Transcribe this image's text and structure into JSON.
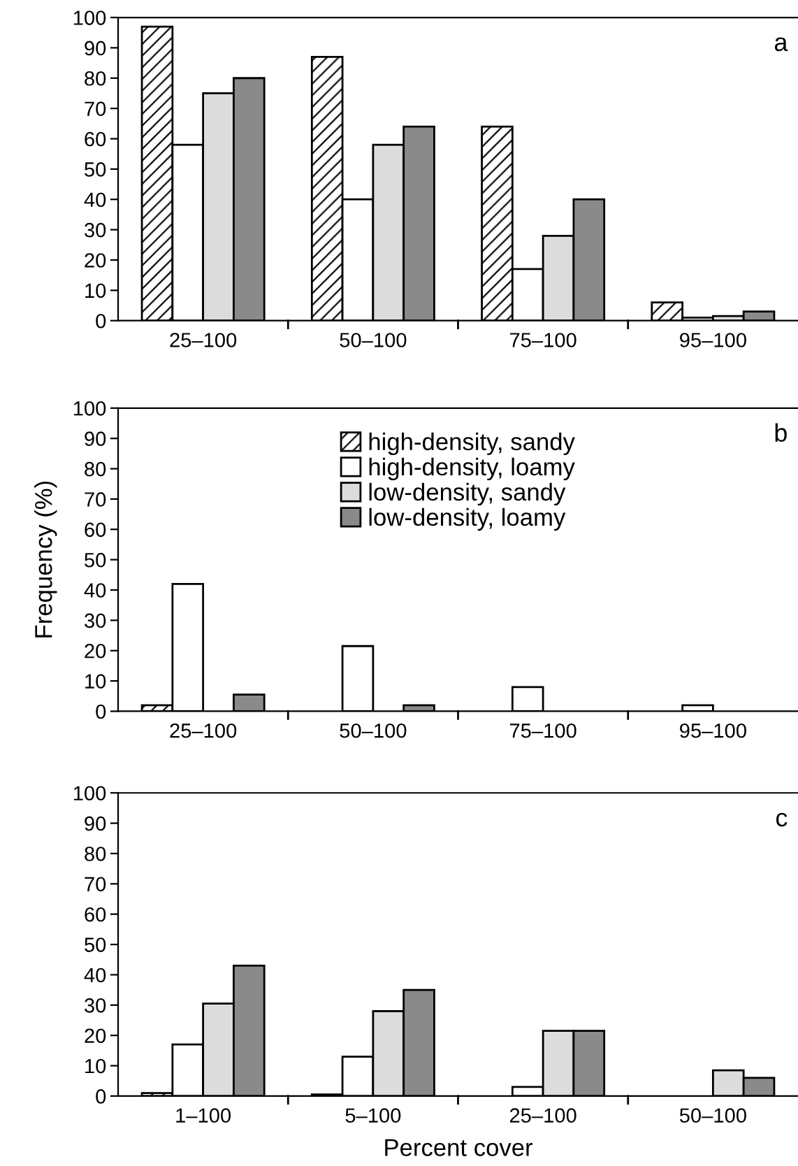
{
  "chart_data": [
    {
      "type": "bar",
      "categories": [
        "25–100",
        "50–100",
        "75–100",
        "95–100"
      ],
      "ylim": [
        0,
        100
      ],
      "yticks": [
        0,
        10,
        20,
        30,
        40,
        50,
        60,
        70,
        80,
        90,
        100
      ],
      "grid": false,
      "legend": false,
      "annotations": [
        "a"
      ],
      "series": [
        {
          "color": "#000000",
          "values": [
            97,
            87,
            64,
            6
          ]
        },
        {
          "color": "#ffffff",
          "values": [
            58,
            40,
            17,
            1
          ]
        },
        {
          "color": "#dcdcdc",
          "values": [
            75,
            58,
            28,
            1.5
          ]
        },
        {
          "color": "#8a8a8a",
          "values": [
            80,
            64,
            40,
            3
          ]
        }
      ]
    },
    {
      "type": "bar",
      "categories": [
        "25–100",
        "50–100",
        "75–100",
        "95–100"
      ],
      "ylim": [
        0,
        100
      ],
      "yticks": [
        0,
        10,
        20,
        30,
        40,
        50,
        60,
        70,
        80,
        90,
        100
      ],
      "grid": false,
      "legend": "top",
      "ylabel": "Frequency (%)",
      "annotations": [
        "b"
      ],
      "series": [
        {
          "name": "high-density, sandy",
          "color": "#000000",
          "values": [
            2,
            0,
            0,
            0
          ]
        },
        {
          "name": "high-density, loamy",
          "color": "#ffffff",
          "values": [
            42,
            21.5,
            8,
            2
          ]
        },
        {
          "name": "low-density, sandy",
          "color": "#dcdcdc",
          "values": [
            0,
            0,
            0,
            0
          ]
        },
        {
          "name": "low-density, loamy",
          "color": "#8a8a8a",
          "values": [
            5.5,
            2,
            0,
            0
          ]
        }
      ]
    },
    {
      "type": "bar",
      "categories": [
        "1–100",
        "5–100",
        "25–100",
        "50–100"
      ],
      "ylim": [
        0,
        100
      ],
      "yticks": [
        0,
        10,
        20,
        30,
        40,
        50,
        60,
        70,
        80,
        90,
        100
      ],
      "grid": false,
      "legend": false,
      "xlabel": "Percent cover",
      "annotations": [
        "c"
      ],
      "series": [
        {
          "color": "#000000",
          "values": [
            1,
            0.5,
            0,
            0
          ]
        },
        {
          "color": "#ffffff",
          "values": [
            17,
            13,
            3,
            0
          ]
        },
        {
          "color": "#dcdcdc",
          "values": [
            30.5,
            28,
            21.5,
            8.5
          ]
        },
        {
          "color": "#8a8a8a",
          "values": [
            43,
            35,
            21.5,
            6
          ]
        }
      ]
    }
  ]
}
